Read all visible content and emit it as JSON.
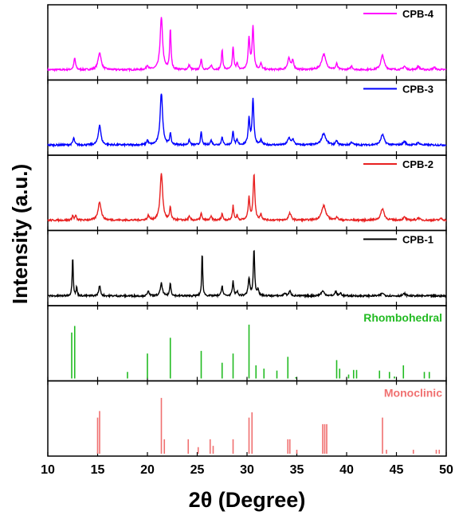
{
  "chart_data": {
    "type": "line",
    "xlabel": "2θ (Degree)",
    "ylabel": "Intensity (a.u.)",
    "xlim": [
      10,
      50
    ],
    "xticks": [
      10,
      15,
      20,
      25,
      30,
      35,
      40,
      45,
      50
    ],
    "grid": false,
    "legend_placement": "top-right of each panel",
    "series": [
      {
        "name": "CPB-4",
        "color": "#ff00ff",
        "baseline": 0.06,
        "peaks": [
          [
            12.7,
            0.2,
            0.1
          ],
          [
            15.2,
            0.3,
            0.18
          ],
          [
            20.0,
            0.08,
            0.1
          ],
          [
            21.4,
            0.9,
            0.15
          ],
          [
            22.3,
            0.7,
            0.08
          ],
          [
            24.2,
            0.08,
            0.1
          ],
          [
            25.4,
            0.2,
            0.08
          ],
          [
            26.4,
            0.08,
            0.1
          ],
          [
            27.5,
            0.35,
            0.08
          ],
          [
            28.6,
            0.4,
            0.08
          ],
          [
            29.0,
            0.12,
            0.08
          ],
          [
            30.2,
            0.55,
            0.1
          ],
          [
            30.6,
            0.75,
            0.1
          ],
          [
            31.4,
            0.1,
            0.1
          ],
          [
            34.2,
            0.2,
            0.15
          ],
          [
            34.6,
            0.15,
            0.12
          ],
          [
            37.7,
            0.27,
            0.25
          ],
          [
            39.0,
            0.1,
            0.1
          ],
          [
            40.5,
            0.06,
            0.12
          ],
          [
            43.6,
            0.25,
            0.2
          ],
          [
            45.8,
            0.06,
            0.15
          ],
          [
            47.2,
            0.06,
            0.15
          ],
          [
            48.8,
            0.04,
            0.15
          ]
        ]
      },
      {
        "name": "CPB-3",
        "color": "#0000ff",
        "baseline": 0.06,
        "peaks": [
          [
            12.6,
            0.12,
            0.1
          ],
          [
            15.2,
            0.35,
            0.15
          ],
          [
            20.0,
            0.08,
            0.1
          ],
          [
            21.4,
            0.9,
            0.15
          ],
          [
            22.3,
            0.2,
            0.08
          ],
          [
            24.2,
            0.08,
            0.1
          ],
          [
            25.4,
            0.22,
            0.08
          ],
          [
            26.4,
            0.08,
            0.1
          ],
          [
            27.5,
            0.15,
            0.08
          ],
          [
            28.6,
            0.25,
            0.08
          ],
          [
            29.0,
            0.08,
            0.08
          ],
          [
            30.2,
            0.45,
            0.1
          ],
          [
            30.6,
            0.8,
            0.1
          ],
          [
            31.4,
            0.08,
            0.1
          ],
          [
            34.2,
            0.12,
            0.15
          ],
          [
            34.6,
            0.1,
            0.12
          ],
          [
            37.7,
            0.2,
            0.25
          ],
          [
            39.0,
            0.07,
            0.1
          ],
          [
            40.5,
            0.05,
            0.12
          ],
          [
            43.6,
            0.18,
            0.2
          ],
          [
            45.8,
            0.06,
            0.15
          ],
          [
            47.2,
            0.04,
            0.15
          ]
        ]
      },
      {
        "name": "CPB-2",
        "color": "#e82020",
        "baseline": 0.06,
        "peaks": [
          [
            12.5,
            0.08,
            0.08
          ],
          [
            12.8,
            0.08,
            0.08
          ],
          [
            15.2,
            0.32,
            0.18
          ],
          [
            20.1,
            0.08,
            0.1
          ],
          [
            21.4,
            0.82,
            0.15
          ],
          [
            22.3,
            0.22,
            0.08
          ],
          [
            24.2,
            0.06,
            0.1
          ],
          [
            25.4,
            0.12,
            0.08
          ],
          [
            26.4,
            0.06,
            0.1
          ],
          [
            27.5,
            0.12,
            0.08
          ],
          [
            28.6,
            0.25,
            0.08
          ],
          [
            29.0,
            0.08,
            0.08
          ],
          [
            30.2,
            0.38,
            0.1
          ],
          [
            30.7,
            0.8,
            0.1
          ],
          [
            31.4,
            0.1,
            0.1
          ],
          [
            34.3,
            0.12,
            0.15
          ],
          [
            37.7,
            0.25,
            0.25
          ],
          [
            39.0,
            0.06,
            0.1
          ],
          [
            43.6,
            0.2,
            0.2
          ],
          [
            45.8,
            0.05,
            0.15
          ],
          [
            47.2,
            0.04,
            0.15
          ],
          [
            49.5,
            0.03,
            0.15
          ]
        ]
      },
      {
        "name": "CPB-1",
        "color": "#000000",
        "baseline": 0.04,
        "peaks": [
          [
            12.5,
            0.7,
            0.06
          ],
          [
            12.9,
            0.15,
            0.06
          ],
          [
            15.2,
            0.18,
            0.1
          ],
          [
            20.1,
            0.1,
            0.08
          ],
          [
            21.4,
            0.22,
            0.12
          ],
          [
            22.3,
            0.22,
            0.08
          ],
          [
            25.5,
            0.75,
            0.06
          ],
          [
            27.5,
            0.18,
            0.08
          ],
          [
            28.6,
            0.25,
            0.08
          ],
          [
            29.0,
            0.08,
            0.08
          ],
          [
            30.2,
            0.3,
            0.1
          ],
          [
            30.7,
            0.8,
            0.08
          ],
          [
            31.1,
            0.12,
            0.08
          ],
          [
            33.8,
            0.05,
            0.1
          ],
          [
            34.3,
            0.08,
            0.12
          ],
          [
            37.6,
            0.08,
            0.2
          ],
          [
            38.9,
            0.08,
            0.1
          ],
          [
            39.4,
            0.05,
            0.1
          ],
          [
            43.6,
            0.05,
            0.15
          ],
          [
            45.8,
            0.04,
            0.15
          ]
        ]
      }
    ],
    "references": [
      {
        "name": "Rhombohedral",
        "color": "#22bb22",
        "sticks": [
          [
            12.4,
            0.7
          ],
          [
            12.7,
            0.8
          ],
          [
            18.0,
            0.1
          ],
          [
            20.0,
            0.38
          ],
          [
            22.3,
            0.62
          ],
          [
            25.4,
            0.42
          ],
          [
            27.5,
            0.24
          ],
          [
            28.6,
            0.38
          ],
          [
            30.2,
            0.82
          ],
          [
            30.9,
            0.2
          ],
          [
            31.7,
            0.15
          ],
          [
            33.0,
            0.12
          ],
          [
            34.1,
            0.33
          ],
          [
            34.9,
            0.02
          ],
          [
            39.0,
            0.28
          ],
          [
            39.3,
            0.15
          ],
          [
            40.2,
            0.06
          ],
          [
            40.7,
            0.13
          ],
          [
            41.0,
            0.13
          ],
          [
            43.3,
            0.12
          ],
          [
            44.3,
            0.1
          ],
          [
            44.8,
            0.03
          ],
          [
            45.7,
            0.2
          ],
          [
            47.8,
            0.1
          ],
          [
            48.3,
            0.1
          ]
        ]
      },
      {
        "name": "Monoclinic",
        "color": "#f07070",
        "sticks": [
          [
            15.0,
            0.55
          ],
          [
            15.2,
            0.65
          ],
          [
            21.4,
            0.85
          ],
          [
            21.7,
            0.22
          ],
          [
            24.1,
            0.22
          ],
          [
            25.1,
            0.1
          ],
          [
            26.3,
            0.22
          ],
          [
            26.6,
            0.12
          ],
          [
            28.6,
            0.22
          ],
          [
            30.2,
            0.55
          ],
          [
            30.5,
            0.63
          ],
          [
            34.1,
            0.22
          ],
          [
            34.3,
            0.22
          ],
          [
            35.0,
            0.06
          ],
          [
            37.6,
            0.45
          ],
          [
            37.8,
            0.45
          ],
          [
            38.0,
            0.45
          ],
          [
            43.6,
            0.55
          ],
          [
            44.0,
            0.06
          ],
          [
            46.7,
            0.06
          ],
          [
            49.0,
            0.06
          ],
          [
            49.3,
            0.06
          ]
        ]
      }
    ]
  }
}
